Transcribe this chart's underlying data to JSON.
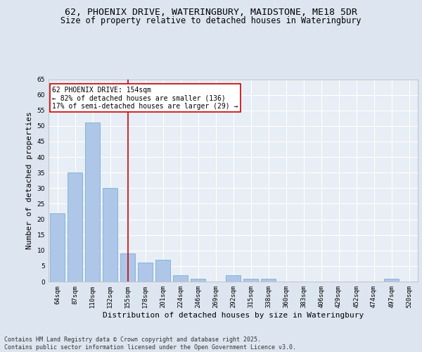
{
  "title1": "62, PHOENIX DRIVE, WATERINGBURY, MAIDSTONE, ME18 5DR",
  "title2": "Size of property relative to detached houses in Wateringbury",
  "xlabel": "Distribution of detached houses by size in Wateringbury",
  "ylabel": "Number of detached properties",
  "categories": [
    "64sqm",
    "87sqm",
    "110sqm",
    "132sqm",
    "155sqm",
    "178sqm",
    "201sqm",
    "224sqm",
    "246sqm",
    "269sqm",
    "292sqm",
    "315sqm",
    "338sqm",
    "360sqm",
    "383sqm",
    "406sqm",
    "429sqm",
    "452sqm",
    "474sqm",
    "497sqm",
    "520sqm"
  ],
  "values": [
    22,
    35,
    51,
    30,
    9,
    6,
    7,
    2,
    1,
    0,
    2,
    1,
    1,
    0,
    0,
    0,
    0,
    0,
    0,
    1,
    0
  ],
  "bar_color": "#aec6e8",
  "bar_edge_color": "#7bafd4",
  "vline_x": 4.0,
  "vline_color": "#cc0000",
  "annotation_text": "62 PHOENIX DRIVE: 154sqm\n← 82% of detached houses are smaller (136)\n17% of semi-detached houses are larger (29) →",
  "annotation_box_color": "#cc0000",
  "ylim": [
    0,
    65
  ],
  "yticks": [
    0,
    5,
    10,
    15,
    20,
    25,
    30,
    35,
    40,
    45,
    50,
    55,
    60,
    65
  ],
  "bg_color": "#dde6f0",
  "plot_bg_color": "#e8eef5",
  "footnote": "Contains HM Land Registry data © Crown copyright and database right 2025.\nContains public sector information licensed under the Open Government Licence v3.0.",
  "title_fontsize": 9.5,
  "subtitle_fontsize": 8.5,
  "tick_fontsize": 6.5,
  "label_fontsize": 8,
  "annot_fontsize": 7,
  "footnote_fontsize": 6
}
